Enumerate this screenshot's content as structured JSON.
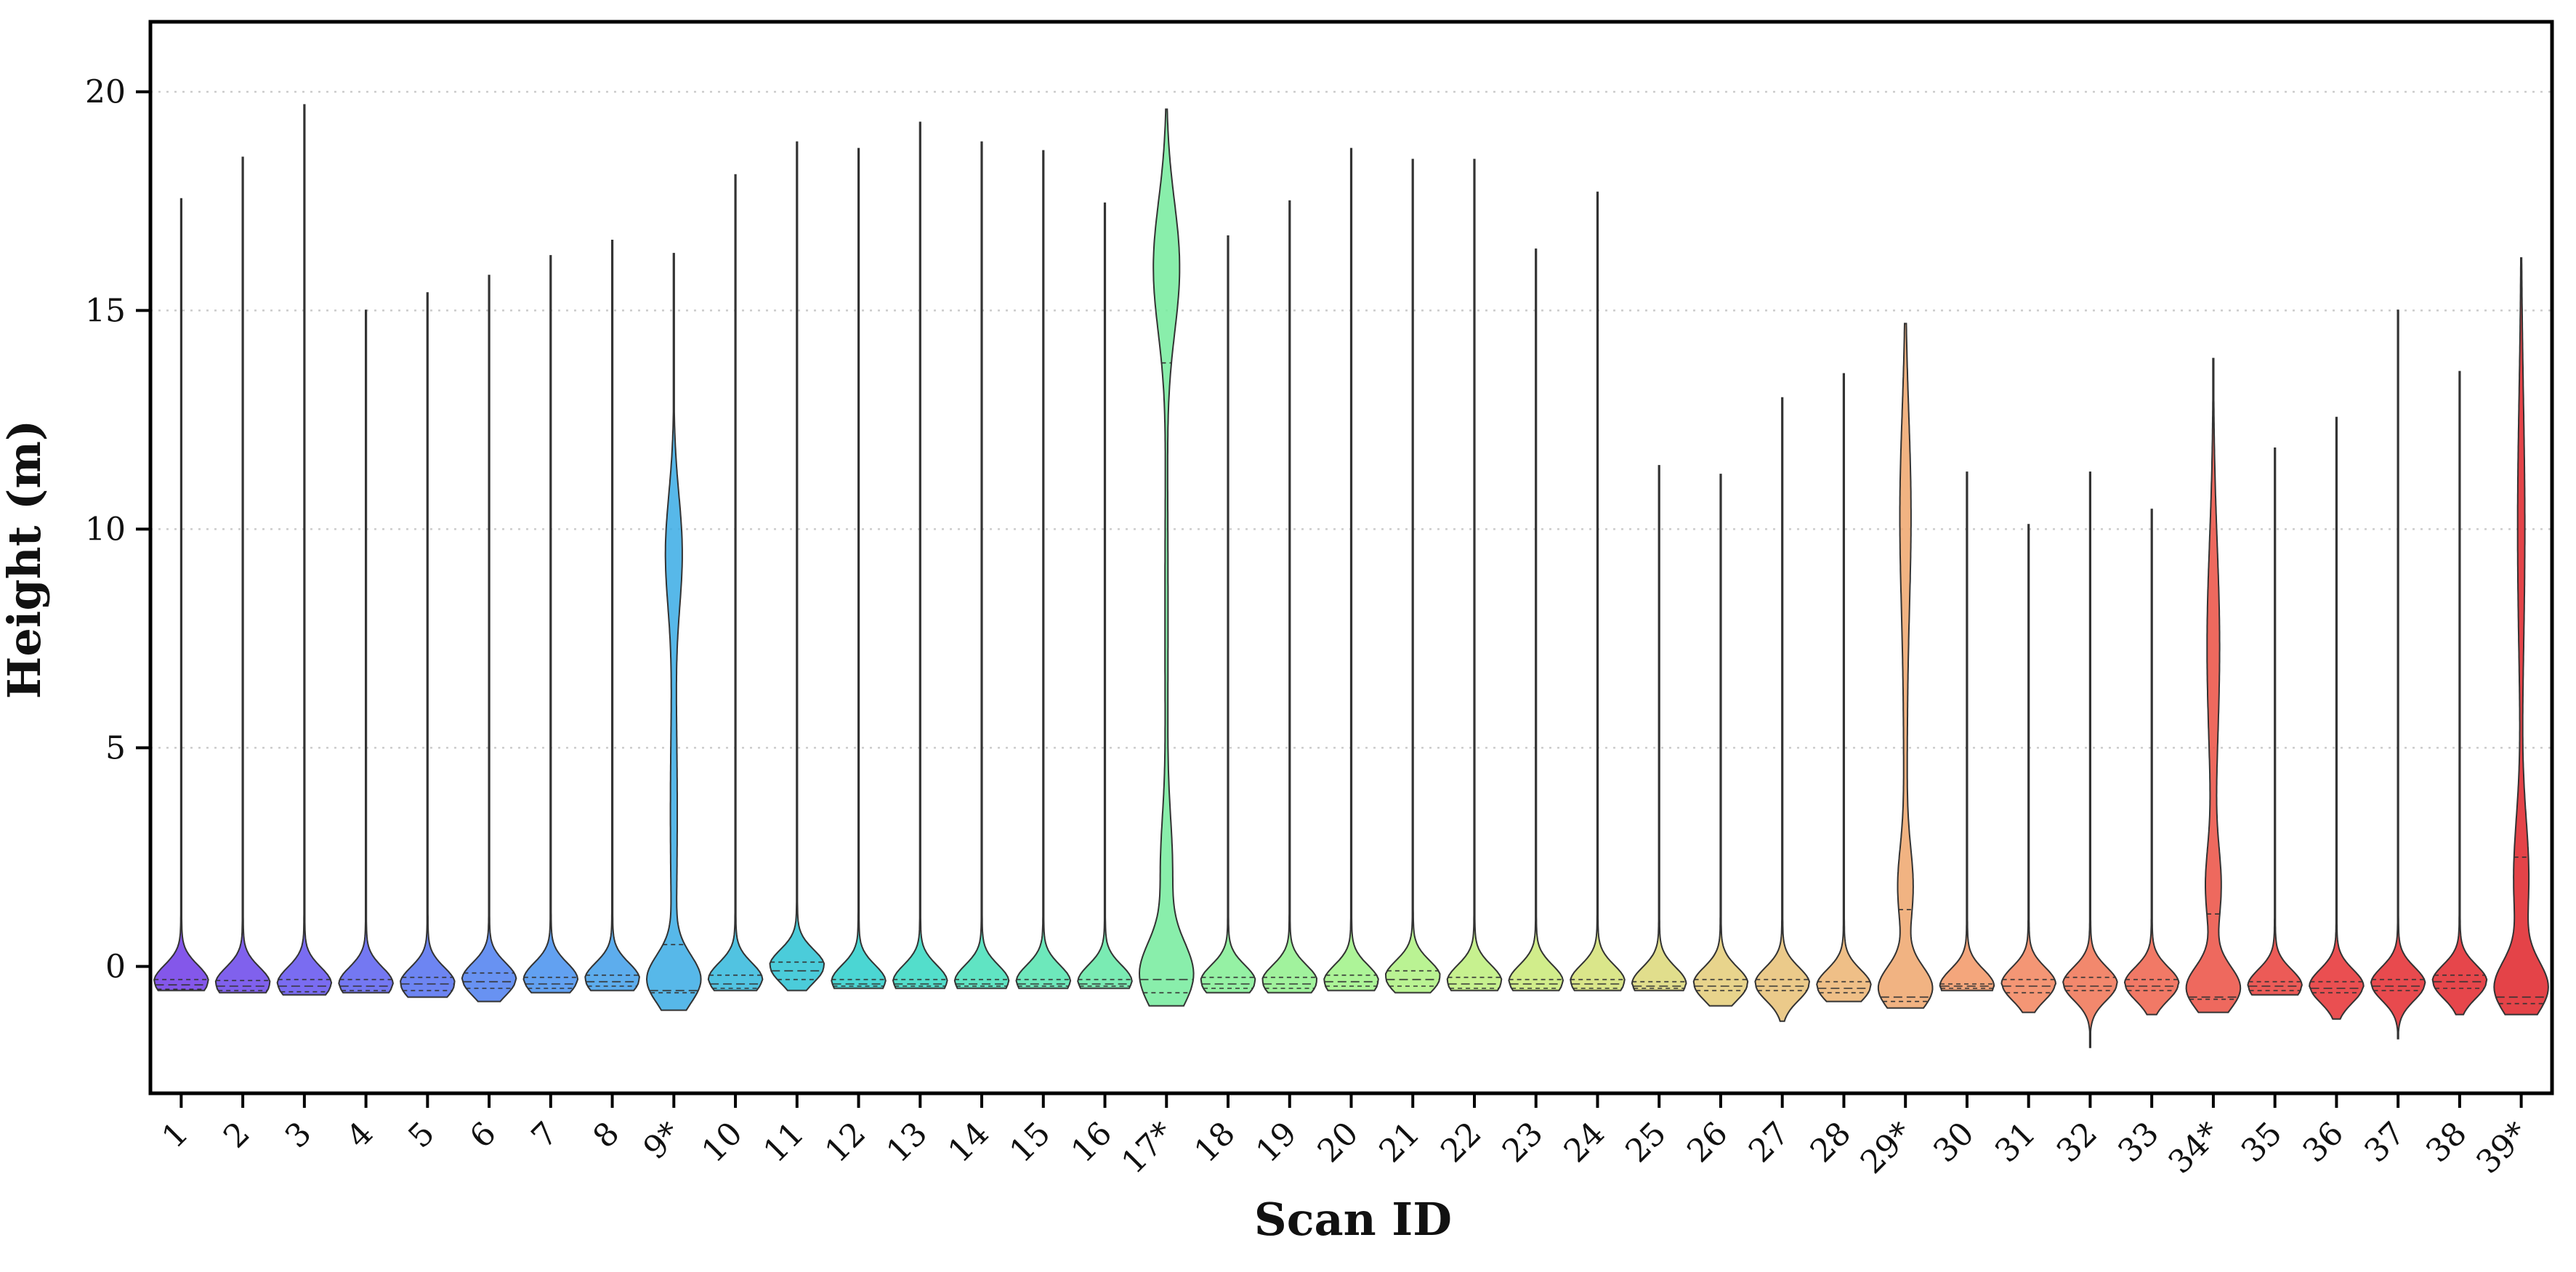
{
  "chart_data": {
    "type": "violin",
    "xlabel": "Scan ID",
    "ylabel": "Height (m)",
    "ylim": [
      -2.9,
      21.6
    ],
    "yticks": [
      0,
      5,
      10,
      15,
      20
    ],
    "ytick_labels": [
      "0",
      "5",
      "10",
      "15",
      "20"
    ],
    "grid": "y-dotted",
    "categories": [
      "1",
      "2",
      "3",
      "4",
      "5",
      "6",
      "7",
      "8",
      "9*",
      "10",
      "11",
      "12",
      "13",
      "14",
      "15",
      "16",
      "17*",
      "18",
      "19",
      "20",
      "21",
      "22",
      "23",
      "24",
      "25",
      "26",
      "27",
      "28",
      "29*",
      "30",
      "31",
      "32",
      "33",
      "34*",
      "35",
      "36",
      "37",
      "38",
      "39*"
    ],
    "colors": [
      "#6f3ae6",
      "#6a45ea",
      "#6352ee",
      "#5c60f0",
      "#5470f0",
      "#4d7ff0",
      "#4790ee",
      "#419fea",
      "#3aace5",
      "#33b8dc",
      "#2bc3d4",
      "#2ccfcb",
      "#35d8c2",
      "#44dfb8",
      "#54e4af",
      "#63e8a6",
      "#74eb9c",
      "#82ee94",
      "#91f08c",
      "#9ff286",
      "#aef180",
      "#bdef7b",
      "#c9ea77",
      "#d4e276",
      "#dcd878",
      "#e4cc78",
      "#e8c176",
      "#ecb472",
      "#efa66c",
      "#f29665",
      "#f2845d",
      "#f07354",
      "#ee614b",
      "#eb4f42",
      "#e93e3a",
      "#e63033",
      "#e42a2f",
      "#e2262c",
      "#df2228"
    ],
    "series": [
      {
        "name": "1",
        "min": -0.55,
        "max": 17.55,
        "peak": -0.35,
        "q1": -0.52,
        "median": -0.42,
        "q3": -0.3,
        "shape": "low"
      },
      {
        "name": "2",
        "min": -0.6,
        "max": 18.5,
        "peak": -0.4,
        "q1": -0.55,
        "median": -0.45,
        "q3": -0.32,
        "shape": "low"
      },
      {
        "name": "3",
        "min": -0.65,
        "max": 19.7,
        "peak": -0.4,
        "q1": -0.58,
        "median": -0.45,
        "q3": -0.3,
        "shape": "low"
      },
      {
        "name": "4",
        "min": -0.6,
        "max": 15.0,
        "peak": -0.4,
        "q1": -0.55,
        "median": -0.45,
        "q3": -0.3,
        "shape": "low"
      },
      {
        "name": "5",
        "min": -0.7,
        "max": 15.4,
        "peak": -0.4,
        "q1": -0.55,
        "median": -0.4,
        "q3": -0.25,
        "shape": "low"
      },
      {
        "name": "6",
        "min": -0.8,
        "max": 15.8,
        "peak": -0.3,
        "q1": -0.5,
        "median": -0.35,
        "q3": -0.15,
        "shape": "low"
      },
      {
        "name": "7",
        "min": -0.6,
        "max": 16.25,
        "peak": -0.3,
        "q1": -0.5,
        "median": -0.4,
        "q3": -0.25,
        "shape": "low"
      },
      {
        "name": "8",
        "min": -0.55,
        "max": 16.6,
        "peak": -0.3,
        "q1": -0.45,
        "median": -0.35,
        "q3": -0.2,
        "shape": "low"
      },
      {
        "name": "9*",
        "min": -1.0,
        "max": 16.3,
        "peak": -0.3,
        "q1": -0.6,
        "median": -0.55,
        "q3": 0.5,
        "shape": "bimodal",
        "peak2": 9.5
      },
      {
        "name": "10",
        "min": -0.55,
        "max": 18.1,
        "peak": -0.3,
        "q1": -0.5,
        "median": -0.4,
        "q3": -0.2,
        "shape": "low"
      },
      {
        "name": "11",
        "min": -0.55,
        "max": 18.85,
        "peak": 0.0,
        "q1": -0.3,
        "median": -0.1,
        "q3": 0.1,
        "shape": "low"
      },
      {
        "name": "12",
        "min": -0.5,
        "max": 18.7,
        "peak": -0.35,
        "q1": -0.45,
        "median": -0.4,
        "q3": -0.3,
        "shape": "low"
      },
      {
        "name": "13",
        "min": -0.5,
        "max": 19.3,
        "peak": -0.35,
        "q1": -0.45,
        "median": -0.4,
        "q3": -0.3,
        "shape": "low"
      },
      {
        "name": "14",
        "min": -0.5,
        "max": 18.85,
        "peak": -0.35,
        "q1": -0.45,
        "median": -0.4,
        "q3": -0.3,
        "shape": "low"
      },
      {
        "name": "15",
        "min": -0.5,
        "max": 18.65,
        "peak": -0.35,
        "q1": -0.45,
        "median": -0.4,
        "q3": -0.3,
        "shape": "low"
      },
      {
        "name": "16",
        "min": -0.5,
        "max": 17.45,
        "peak": -0.35,
        "q1": -0.45,
        "median": -0.4,
        "q3": -0.3,
        "shape": "low"
      },
      {
        "name": "17*",
        "min": -0.9,
        "max": 19.6,
        "peak": -0.2,
        "q1": -0.6,
        "median": -0.3,
        "q3": 13.8,
        "shape": "bimodal-high",
        "peak2": 16.0
      },
      {
        "name": "18",
        "min": -0.6,
        "max": 16.7,
        "peak": -0.35,
        "q1": -0.5,
        "median": -0.4,
        "q3": -0.25,
        "shape": "low"
      },
      {
        "name": "19",
        "min": -0.6,
        "max": 17.5,
        "peak": -0.35,
        "q1": -0.5,
        "median": -0.4,
        "q3": -0.25,
        "shape": "low"
      },
      {
        "name": "20",
        "min": -0.55,
        "max": 18.7,
        "peak": -0.35,
        "q1": -0.45,
        "median": -0.35,
        "q3": -0.2,
        "shape": "low"
      },
      {
        "name": "21",
        "min": -0.6,
        "max": 18.45,
        "peak": -0.25,
        "q1": -0.45,
        "median": -0.3,
        "q3": -0.1,
        "shape": "low"
      },
      {
        "name": "22",
        "min": -0.55,
        "max": 18.45,
        "peak": -0.35,
        "q1": -0.5,
        "median": -0.4,
        "q3": -0.25,
        "shape": "low"
      },
      {
        "name": "23",
        "min": -0.55,
        "max": 16.4,
        "peak": -0.35,
        "q1": -0.5,
        "median": -0.4,
        "q3": -0.3,
        "shape": "low"
      },
      {
        "name": "24",
        "min": -0.55,
        "max": 17.7,
        "peak": -0.35,
        "q1": -0.5,
        "median": -0.4,
        "q3": -0.3,
        "shape": "low"
      },
      {
        "name": "25",
        "min": -0.55,
        "max": 11.45,
        "peak": -0.4,
        "q1": -0.5,
        "median": -0.45,
        "q3": -0.35,
        "shape": "low"
      },
      {
        "name": "26",
        "min": -0.9,
        "max": 11.25,
        "peak": -0.4,
        "q1": -0.55,
        "median": -0.45,
        "q3": -0.3,
        "shape": "low"
      },
      {
        "name": "27",
        "min": -1.25,
        "max": 13.0,
        "peak": -0.4,
        "q1": -0.55,
        "median": -0.45,
        "q3": -0.3,
        "shape": "low"
      },
      {
        "name": "28",
        "min": -0.8,
        "max": 13.55,
        "peak": -0.45,
        "q1": -0.6,
        "median": -0.5,
        "q3": -0.35,
        "shape": "low"
      },
      {
        "name": "29*",
        "min": -0.95,
        "max": 14.7,
        "peak": -0.5,
        "q1": -0.8,
        "median": -0.7,
        "q3": 1.3,
        "shape": "bimodal-mid",
        "peak2": 10.5
      },
      {
        "name": "30",
        "min": -0.55,
        "max": 11.3,
        "peak": -0.45,
        "q1": -0.5,
        "median": -0.45,
        "q3": -0.4,
        "shape": "low"
      },
      {
        "name": "31",
        "min": -1.05,
        "max": 10.1,
        "peak": -0.4,
        "q1": -0.6,
        "median": -0.45,
        "q3": -0.3,
        "shape": "low"
      },
      {
        "name": "32",
        "min": -1.85,
        "max": 11.3,
        "peak": -0.4,
        "q1": -0.55,
        "median": -0.45,
        "q3": -0.25,
        "shape": "low"
      },
      {
        "name": "33",
        "min": -1.1,
        "max": 10.45,
        "peak": -0.4,
        "q1": -0.55,
        "median": -0.45,
        "q3": -0.3,
        "shape": "low"
      },
      {
        "name": "34*",
        "min": -1.05,
        "max": 13.9,
        "peak": -0.5,
        "q1": -0.75,
        "median": -0.7,
        "q3": 1.2,
        "shape": "bimodal-mid",
        "peak2": 7.5
      },
      {
        "name": "35",
        "min": -0.65,
        "max": 11.85,
        "peak": -0.45,
        "q1": -0.55,
        "median": -0.45,
        "q3": -0.35,
        "shape": "low"
      },
      {
        "name": "36",
        "min": -1.2,
        "max": 12.55,
        "peak": -0.45,
        "q1": -0.6,
        "median": -0.5,
        "q3": -0.35,
        "shape": "low"
      },
      {
        "name": "37",
        "min": -1.65,
        "max": 15.0,
        "peak": -0.4,
        "q1": -0.55,
        "median": -0.45,
        "q3": -0.3,
        "shape": "low"
      },
      {
        "name": "38",
        "min": -1.1,
        "max": 13.6,
        "peak": -0.35,
        "q1": -0.5,
        "median": -0.35,
        "q3": -0.2,
        "shape": "low"
      },
      {
        "name": "39*",
        "min": -1.1,
        "max": 16.2,
        "peak": -0.5,
        "q1": -0.85,
        "median": -0.7,
        "q3": 2.5,
        "shape": "bimodal-red",
        "peak2": 10.0
      }
    ]
  }
}
